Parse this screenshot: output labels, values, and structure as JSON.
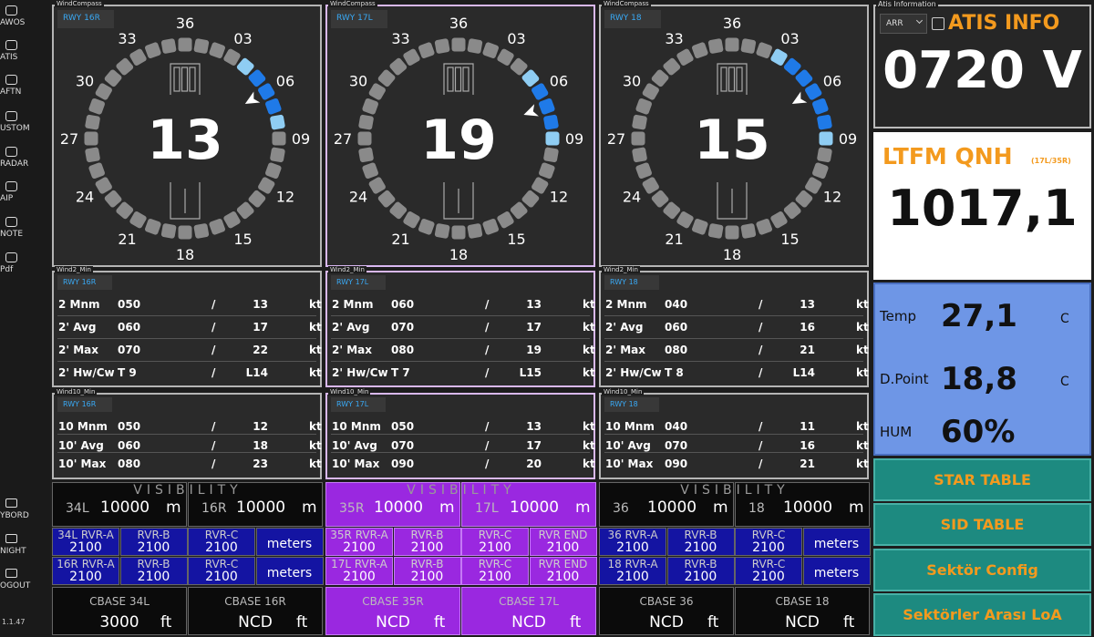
{
  "sidebar": {
    "items": [
      "AWOS",
      "ATIS",
      "AFTN",
      "USTOM",
      "RADAR",
      "AIP",
      "NOTE",
      "Pdf"
    ],
    "bottom_items": [
      "YBORD",
      "NIGHT",
      "OGOUT"
    ],
    "version": "1.1.47"
  },
  "compass_labels": [
    "36",
    "03",
    "06",
    "09",
    "12",
    "15",
    "18",
    "21",
    "24",
    "27",
    "30",
    "33"
  ],
  "panels": [
    {
      "compass_title": "WindCompass",
      "runway": "RWY 16R",
      "heading": "13",
      "wind2_title": "Wind2_Min",
      "wind2": [
        [
          "2 Mnm",
          "050",
          "/",
          "13",
          "kt"
        ],
        [
          "2' Avg",
          "060",
          "/",
          "17",
          "kt"
        ],
        [
          "2' Max",
          "070",
          "/",
          "22",
          "kt"
        ],
        [
          "2' Hw/Cw",
          "T 9",
          "/",
          "L14",
          "kt"
        ]
      ],
      "wind10_title": "Wind10_Min",
      "wind10": [
        [
          "10 Mnm",
          "050",
          "/",
          "12",
          "kt"
        ],
        [
          "10' Avg",
          "060",
          "/",
          "18",
          "kt"
        ],
        [
          "10' Max",
          "080",
          "/",
          "23",
          "kt"
        ]
      ]
    },
    {
      "compass_title": "WindCompass",
      "runway": "RWY 17L",
      "heading": "19",
      "wind2_title": "Wind2_Min",
      "wind2": [
        [
          "2 Mnm",
          "060",
          "/",
          "13",
          "kt"
        ],
        [
          "2' Avg",
          "070",
          "/",
          "17",
          "kt"
        ],
        [
          "2' Max",
          "080",
          "/",
          "19",
          "kt"
        ],
        [
          "2' Hw/Cw",
          "T 7",
          "/",
          "L15",
          "kt"
        ]
      ],
      "wind10_title": "Wind10_Min",
      "wind10": [
        [
          "10 Mnm",
          "050",
          "/",
          "13",
          "kt"
        ],
        [
          "10' Avg",
          "070",
          "/",
          "17",
          "kt"
        ],
        [
          "10' Max",
          "090",
          "/",
          "20",
          "kt"
        ]
      ]
    },
    {
      "compass_title": "WindCompass",
      "runway": "RWY 18",
      "heading": "15",
      "wind2_title": "Wind2_Min",
      "wind2": [
        [
          "2 Mnm",
          "040",
          "/",
          "13",
          "kt"
        ],
        [
          "2' Avg",
          "060",
          "/",
          "16",
          "kt"
        ],
        [
          "2' Max",
          "080",
          "/",
          "21",
          "kt"
        ],
        [
          "2' Hw/Cw",
          "T 8",
          "/",
          "L14",
          "kt"
        ]
      ],
      "wind10_title": "Wind10_Min",
      "wind10": [
        [
          "10 Mnm",
          "040",
          "/",
          "11",
          "kt"
        ],
        [
          "10' Avg",
          "070",
          "/",
          "16",
          "kt"
        ],
        [
          "10' Max",
          "090",
          "/",
          "21",
          "kt"
        ]
      ]
    }
  ],
  "visibility": [
    {
      "title": "VISIBILITY",
      "vis": [
        [
          "34L",
          "10000",
          "m"
        ],
        [
          "16R",
          "10000",
          "m"
        ]
      ],
      "rvr": [
        [
          [
            "34L  RVR-A",
            "2100"
          ],
          [
            "RVR-B",
            "2100"
          ],
          [
            "RVR-C",
            "2100"
          ],
          [
            "meters"
          ]
        ],
        [
          [
            "16R  RVR-A",
            "2100"
          ],
          [
            "RVR-B",
            "2100"
          ],
          [
            "RVR-C",
            "2100"
          ],
          [
            "meters"
          ]
        ]
      ],
      "cbase": [
        [
          "CBASE 34L",
          "3000",
          "ft"
        ],
        [
          "CBASE 16R",
          "NCD",
          "ft"
        ]
      ]
    },
    {
      "title": "VISIBILITY",
      "vis": [
        [
          "35R",
          "10000",
          "m"
        ],
        [
          "17L",
          "10000",
          "m"
        ]
      ],
      "rvr": [
        [
          [
            "35R  RVR-A",
            "2100"
          ],
          [
            "RVR-B",
            "2100"
          ],
          [
            "RVR-C",
            "2100"
          ],
          [
            "RVR END",
            "2100"
          ]
        ],
        [
          [
            "17L  RVR-A",
            "2100"
          ],
          [
            "RVR-B",
            "2100"
          ],
          [
            "RVR-C",
            "2100"
          ],
          [
            "RVR END",
            "2100"
          ]
        ]
      ],
      "cbase": [
        [
          "CBASE 35R",
          "NCD",
          "ft"
        ],
        [
          "CBASE 17L",
          "NCD",
          "ft"
        ]
      ]
    },
    {
      "title": "VISIBILITY",
      "vis": [
        [
          "36",
          "10000",
          "m"
        ],
        [
          "18",
          "10000",
          "m"
        ]
      ],
      "rvr": [
        [
          [
            "36  RVR-A",
            "2100"
          ],
          [
            "RVR-B",
            "2100"
          ],
          [
            "RVR-C",
            "2100"
          ],
          [
            "meters"
          ]
        ],
        [
          [
            "18  RVR-A",
            "2100"
          ],
          [
            "RVR-B",
            "2100"
          ],
          [
            "RVR-C",
            "2100"
          ],
          [
            "meters"
          ]
        ]
      ],
      "cbase": [
        [
          "CBASE 36",
          "NCD",
          "ft"
        ],
        [
          "CBASE 18",
          "NCD",
          "ft"
        ]
      ]
    }
  ],
  "atis": {
    "title": "Atis Information",
    "mode": "ARR",
    "label": "ATIS INFO",
    "value": "0720 V"
  },
  "qnh": {
    "label": "LTFM QNH",
    "runways": "(17L/35R)",
    "value": "1017,1"
  },
  "met": [
    [
      "Temp",
      "27,1",
      "C"
    ],
    [
      "D.Point",
      "18,8",
      "C"
    ],
    [
      "HUM",
      "60%"
    ]
  ],
  "buttons": [
    "STAR TABLE",
    "SID TABLE",
    "Sektör Config",
    "Sektörler Arası LoA"
  ]
}
